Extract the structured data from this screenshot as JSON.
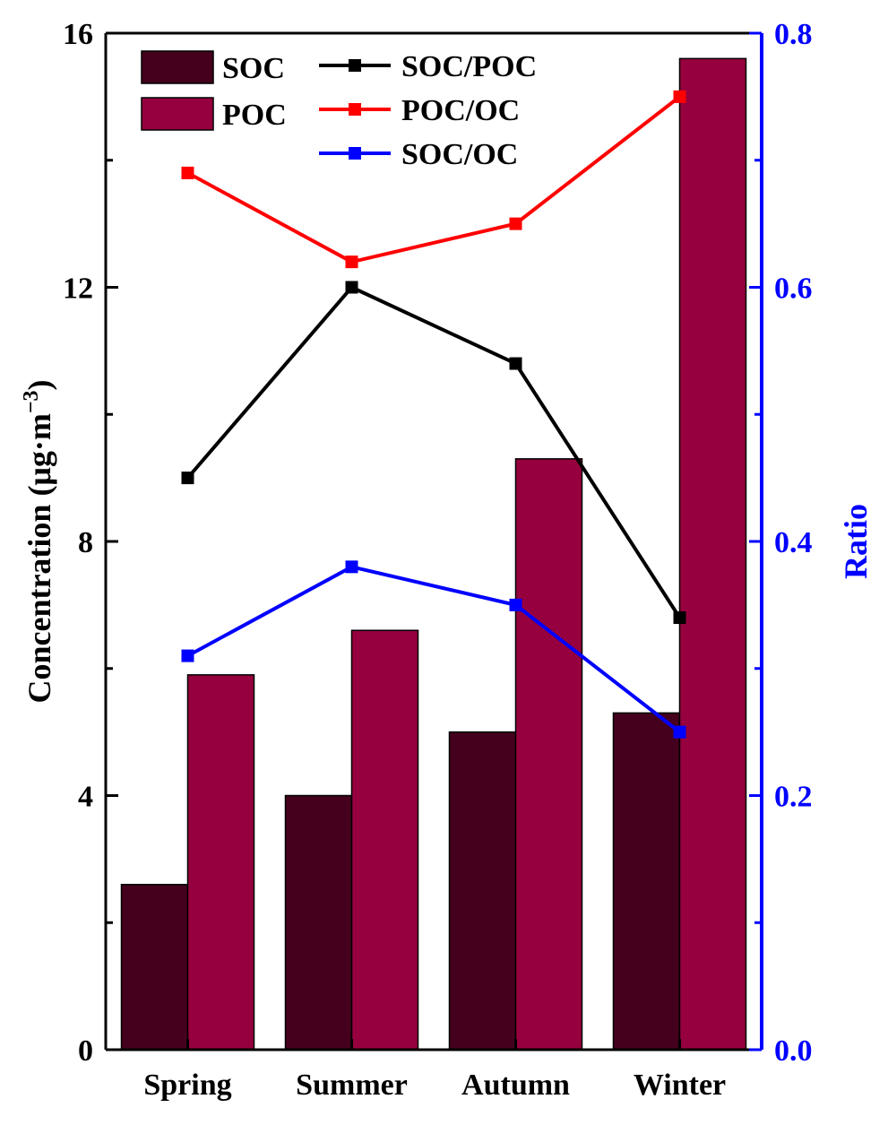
{
  "chart_data": {
    "type": "bar",
    "categories": [
      "Spring",
      "Summer",
      "Autumn",
      "Winter"
    ],
    "series": [
      {
        "name": "SOC",
        "type": "bar",
        "axis": "left",
        "color": "#45001d",
        "values": [
          2.6,
          4.0,
          5.0,
          5.3
        ]
      },
      {
        "name": "POC",
        "type": "bar",
        "axis": "left",
        "color": "#96003e",
        "values": [
          5.9,
          6.6,
          9.3,
          15.6
        ]
      },
      {
        "name": "SOC/POC",
        "type": "line",
        "axis": "right",
        "color": "#000000",
        "values": [
          0.45,
          0.6,
          0.54,
          0.34
        ]
      },
      {
        "name": "POC/OC",
        "type": "line",
        "axis": "right",
        "color": "#ff0000",
        "values": [
          0.69,
          0.62,
          0.65,
          0.75
        ]
      },
      {
        "name": "SOC/OC",
        "type": "line",
        "axis": "right",
        "color": "#0000ff",
        "values": [
          0.31,
          0.38,
          0.35,
          0.25
        ]
      }
    ],
    "ylabel": "Concentration (μg·m",
    "ylabel_sup": "−3",
    "ylabel_end": ")",
    "y2label": "Ratio",
    "ylim": [
      0,
      16
    ],
    "y2lim": [
      0,
      0.8
    ],
    "yticks": [
      0,
      4,
      8,
      12,
      16
    ],
    "yticklabels": [
      "0",
      "4",
      "8",
      "12",
      "16"
    ],
    "y2ticks": [
      0,
      0.2,
      0.4,
      0.6,
      0.8
    ],
    "y2ticklabels": [
      "0.0",
      "0.2",
      "0.4",
      "0.6",
      "0.8"
    ],
    "right_axis_color": "#0000ff",
    "legend_position": "top-left",
    "grid": false
  }
}
